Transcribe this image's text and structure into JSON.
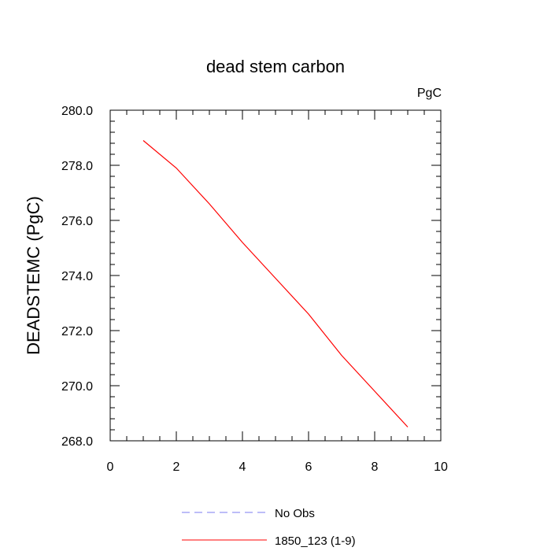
{
  "chart_data": {
    "type": "line",
    "title": "dead stem carbon",
    "units_label": "PgC",
    "xlabel": "",
    "ylabel": "DEADSTEMC  (PgC)",
    "xlim": [
      0,
      10
    ],
    "ylim": [
      268.0,
      280.0
    ],
    "x_ticks": [
      "0",
      "2",
      "4",
      "6",
      "8",
      "10"
    ],
    "y_ticks": [
      "268.0",
      "270.0",
      "272.0",
      "274.0",
      "276.0",
      "278.0",
      "280.0"
    ],
    "grid": false,
    "legend_position": "bottom",
    "series": [
      {
        "name": "No Obs",
        "color": "#7b7bf0",
        "style": "dashed",
        "x": [],
        "y": []
      },
      {
        "name": "1850_123 (1-9)",
        "color": "#ff0000",
        "style": "solid",
        "x": [
          1,
          2,
          3,
          4,
          5,
          6,
          7,
          8,
          9
        ],
        "y": [
          278.9,
          277.9,
          276.6,
          275.2,
          273.9,
          272.6,
          271.1,
          269.8,
          268.5
        ]
      }
    ]
  }
}
